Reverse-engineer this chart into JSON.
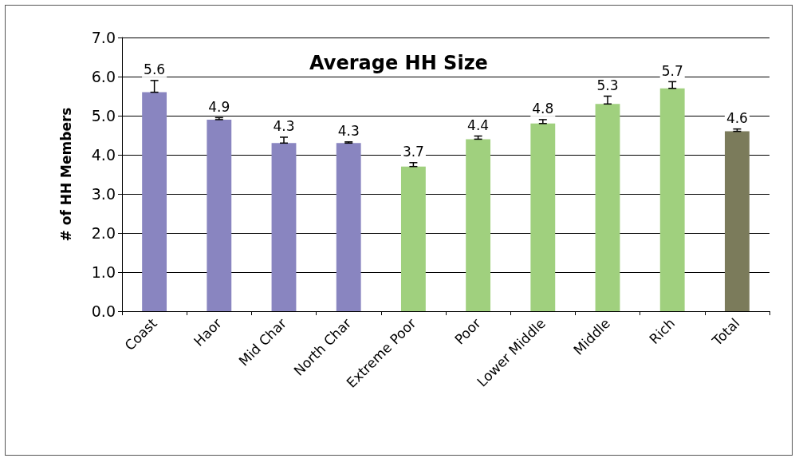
{
  "chart_data": {
    "type": "bar",
    "title": "Average HH Size",
    "ylabel": "# of HH Members",
    "categories": [
      "Coast",
      "Haor",
      "Mid Char",
      "North Char",
      "Extreme Poor",
      "Poor",
      "Lower Middle",
      "Middle",
      "Rich",
      "Total"
    ],
    "values": [
      5.6,
      4.9,
      4.3,
      4.3,
      3.7,
      4.4,
      4.8,
      5.3,
      5.7,
      4.6
    ],
    "colors": [
      "#8985c0",
      "#8985c0",
      "#8985c0",
      "#8985c0",
      "#a0d07e",
      "#a0d07e",
      "#a0d07e",
      "#a0d07e",
      "#a0d07e",
      "#7b7b5b"
    ],
    "errors": [
      [
        5.6,
        5.9
      ],
      [
        4.9,
        4.95
      ],
      [
        4.3,
        4.45
      ],
      [
        4.3,
        4.33
      ],
      [
        3.7,
        3.8
      ],
      [
        4.4,
        4.48
      ],
      [
        4.8,
        4.9
      ],
      [
        5.3,
        5.5
      ],
      [
        5.7,
        5.87
      ],
      [
        4.6,
        4.66
      ]
    ],
    "ylim": [
      0,
      7
    ],
    "yticks": [
      {
        "value": 0,
        "label": "0.0"
      },
      {
        "value": 1,
        "label": "1.0"
      },
      {
        "value": 2,
        "label": "2.0"
      },
      {
        "value": 3,
        "label": "3.0"
      },
      {
        "value": 4,
        "label": "4.0"
      },
      {
        "value": 5,
        "label": "5.0"
      },
      {
        "value": 6,
        "label": "6.0"
      },
      {
        "value": 7,
        "label": "7.0"
      }
    ],
    "grid": "y",
    "data_labels": true
  }
}
